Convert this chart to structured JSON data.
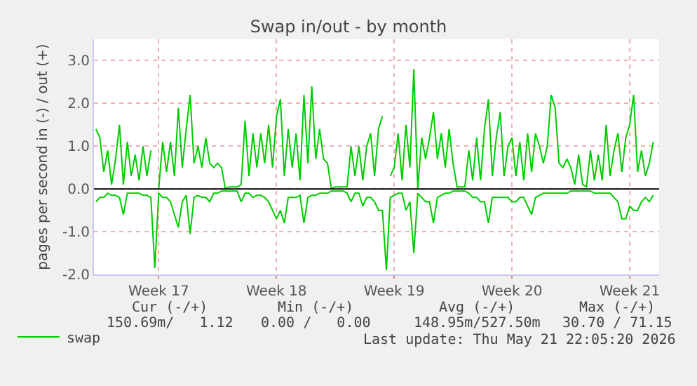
{
  "chart_data": {
    "type": "line",
    "title": "Swap in/out - by month",
    "ylabel": "pages per second in (-) / out (+)",
    "categories": [
      null,
      null,
      null,
      null,
      null,
      null,
      null,
      null,
      null,
      null,
      null,
      null,
      null,
      null,
      null,
      null,
      "Week 17",
      null,
      null,
      null,
      null,
      null,
      null,
      null,
      null,
      null,
      null,
      null,
      null,
      null,
      null,
      null,
      null,
      null,
      null,
      null,
      null,
      null,
      null,
      null,
      null,
      null,
      null,
      null,
      null,
      null,
      "Week 18",
      null,
      null,
      null,
      null,
      null,
      null,
      null,
      null,
      null,
      null,
      null,
      null,
      null,
      null,
      null,
      null,
      null,
      null,
      null,
      null,
      null,
      null,
      null,
      null,
      null,
      null,
      null,
      null,
      null,
      "Week 19",
      null,
      null,
      null,
      null,
      null,
      null,
      null,
      null,
      null,
      null,
      null,
      null,
      null,
      null,
      null,
      null,
      null,
      null,
      null,
      null,
      null,
      null,
      null,
      null,
      null,
      null,
      null,
      null,
      null,
      "Week 20",
      null,
      null,
      null,
      null,
      null,
      null,
      null,
      null,
      null,
      null,
      null,
      null,
      null,
      null,
      null,
      null,
      null,
      null,
      null,
      null,
      null,
      null,
      null,
      null,
      null,
      null,
      null,
      null,
      null,
      "Week 21",
      null,
      null,
      null,
      null,
      null,
      null,
      null
    ],
    "ylim": [
      -2.0,
      3.5
    ],
    "yticks": [
      {
        "value": -2,
        "label": "-2.0"
      },
      {
        "value": -1,
        "label": "-1.0"
      },
      {
        "value": 0,
        "label": "0.0"
      },
      {
        "value": 1,
        "label": "1.0"
      },
      {
        "value": 2,
        "label": "2.0"
      },
      {
        "value": 3,
        "label": "3.0"
      }
    ],
    "grid": true,
    "legend": "bottom",
    "line_style": "solid",
    "marker": "none",
    "ref_lines": [
      {
        "axis": "y",
        "value": 0,
        "label": null,
        "color": "#000000"
      }
    ],
    "series": [
      {
        "name": "swap",
        "color": "#00cc00",
        "values": [
          1.4,
          1.2,
          0.4,
          0.9,
          0.1,
          0.7,
          1.5,
          0.1,
          1.1,
          0.3,
          0.8,
          0.2,
          1.0,
          0.3,
          0.9,
          null,
          0.0,
          1.1,
          0.4,
          1.1,
          0.3,
          1.9,
          0.5,
          1.4,
          2.2,
          0.6,
          1.0,
          0.5,
          1.2,
          0.6,
          0.5,
          0.6,
          0.5,
          0.0,
          0.05,
          0.05,
          0.05,
          0.1,
          1.6,
          0.3,
          1.3,
          0.5,
          1.3,
          0.6,
          1.5,
          0.5,
          1.7,
          2.1,
          0.3,
          1.4,
          0.5,
          1.3,
          0.2,
          2.2,
          0.6,
          2.4,
          0.7,
          1.4,
          0.7,
          0.6,
          0.0,
          0.05,
          0.05,
          0.05,
          0.05,
          1.0,
          0.3,
          1.0,
          0.2,
          1.0,
          1.3,
          0.3,
          1.4,
          1.7,
          null,
          0.3,
          0.5,
          1.3,
          0.2,
          1.5,
          0.5,
          2.8,
          0.0,
          1.2,
          0.7,
          1.2,
          1.8,
          0.7,
          1.3,
          0.5,
          1.4,
          0.6,
          0.05,
          0.05,
          0.05,
          0.9,
          0.2,
          1.2,
          0.2,
          1.4,
          2.1,
          0.3,
          1.2,
          1.8,
          0.3,
          1.0,
          1.2,
          0.3,
          1.1,
          0.2,
          1.3,
          0.4,
          1.3,
          1.0,
          0.6,
          1.0,
          2.2,
          1.9,
          0.6,
          0.5,
          0.7,
          0.5,
          0.1,
          0.8,
          0.1,
          0.05,
          0.9,
          0.2,
          0.8,
          0.2,
          1.5,
          0.3,
          0.9,
          1.3,
          0.4,
          1.2,
          1.5,
          2.2,
          0.4,
          0.9,
          0.3,
          0.6,
          1.1,
          null
        ]
      },
      {
        "color": "#00cc00",
        "values": [
          -0.3,
          -0.2,
          -0.2,
          -0.1,
          -0.15,
          -0.15,
          -0.2,
          -0.6,
          -0.1,
          -0.1,
          -0.1,
          -0.1,
          -0.15,
          -0.15,
          -0.2,
          -1.85,
          -0.1,
          -0.2,
          -0.2,
          -0.3,
          -0.6,
          -0.9,
          -0.3,
          -0.15,
          -1.05,
          -0.2,
          -0.15,
          -0.2,
          -0.2,
          -0.3,
          -0.1,
          -0.1,
          -0.05,
          -0.05,
          -0.05,
          -0.05,
          -0.05,
          -0.3,
          -0.1,
          -0.1,
          -0.2,
          -0.15,
          -0.15,
          -0.2,
          -0.3,
          -0.5,
          -0.7,
          -0.5,
          -0.8,
          -0.2,
          -0.2,
          -0.2,
          -0.15,
          -0.8,
          -0.2,
          -0.15,
          -0.15,
          -0.1,
          -0.1,
          -0.1,
          -0.05,
          -0.05,
          -0.05,
          -0.05,
          -0.1,
          -0.3,
          -0.1,
          -0.1,
          -0.4,
          -0.2,
          -0.2,
          -0.3,
          -0.5,
          -0.5,
          -1.9,
          -0.2,
          -0.15,
          -0.1,
          -0.1,
          -0.5,
          -0.3,
          -1.5,
          -0.1,
          -0.2,
          -0.3,
          -0.3,
          -0.8,
          -0.2,
          -0.15,
          -0.1,
          -0.1,
          -0.05,
          -0.05,
          -0.05,
          -0.05,
          -0.1,
          -0.2,
          -0.2,
          -0.3,
          -0.3,
          -0.8,
          -0.2,
          -0.2,
          -0.2,
          -0.2,
          -0.2,
          -0.3,
          -0.3,
          -0.2,
          -0.2,
          -0.4,
          -0.6,
          -0.2,
          -0.15,
          -0.1,
          -0.1,
          -0.1,
          -0.1,
          -0.1,
          -0.1,
          -0.1,
          -0.05,
          -0.05,
          -0.05,
          -0.05,
          -0.05,
          -0.05,
          -0.1,
          -0.1,
          -0.1,
          -0.1,
          -0.1,
          -0.2,
          -0.3,
          -0.7,
          -0.7,
          -0.4,
          -0.5,
          -0.5,
          -0.3,
          -0.2,
          -0.3,
          -0.15,
          null
        ]
      }
    ],
    "annotations": [
      "Cur (-/+)",
      "Min (-/+)",
      "Avg (-/+)",
      "Max (-/+)",
      "150.69m/   1.12",
      "0.00 /   0.00",
      "148.95m/527.50m",
      "30.70 / 71.15",
      "Last update: Thu May 21 22:05:20 2026"
    ]
  }
}
